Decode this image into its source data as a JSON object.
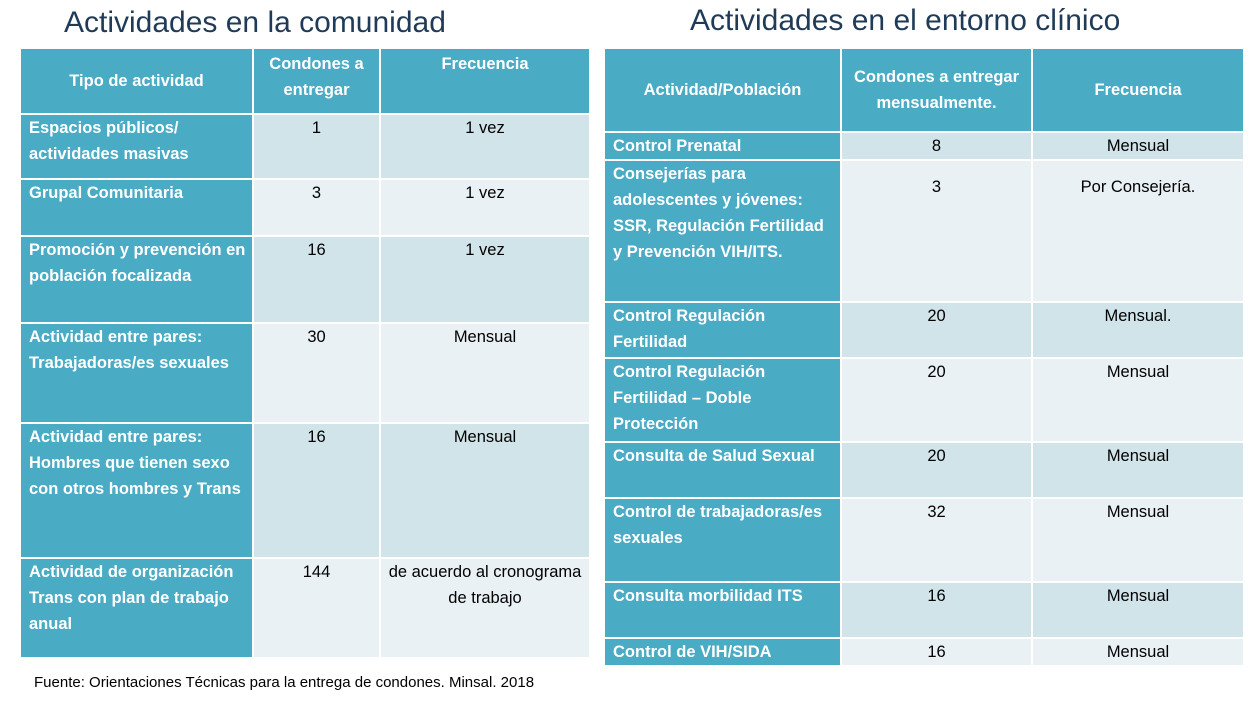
{
  "left": {
    "title": "Actividades en la comunidad",
    "headers": [
      "Tipo de actividad",
      "Condones a entregar",
      "Frecuencia"
    ],
    "rows": [
      {
        "activity": "Espacios públicos/ actividades masivas",
        "condoms": "1",
        "frequency": "1 vez"
      },
      {
        "activity": "Grupal Comunitaria",
        "condoms": "3",
        "frequency": "1 vez"
      },
      {
        "activity": "Promoción y prevención en población focalizada",
        "condoms": "16",
        "frequency": "1 vez"
      },
      {
        "activity": "Actividad entre pares: Trabajadoras/es sexuales",
        "condoms": "30",
        "frequency": "Mensual"
      },
      {
        "activity": "Actividad entre pares: Hombres que tienen sexo con otros hombres y Trans",
        "condoms": "16",
        "frequency": "Mensual"
      },
      {
        "activity": "Actividad de organización Trans con plan de  trabajo anual",
        "condoms": "144",
        "frequency": "de acuerdo al cronograma de trabajo"
      }
    ]
  },
  "right": {
    "title": "Actividades en el entorno clínico",
    "headers": [
      "Actividad/Población",
      "Condones a entregar mensualmente.",
      "Frecuencia"
    ],
    "rows": [
      {
        "activity": "Control Prenatal",
        "condoms": "8",
        "frequency": "Mensual"
      },
      {
        "activity": "Consejerías para adolescentes y jóvenes: SSR, Regulación Fertilidad y Prevención VIH/ITS.",
        "condoms": "3",
        "frequency": "Por Consejería."
      },
      {
        "activity": "Control Regulación Fertilidad",
        "condoms": "20",
        "frequency": "Mensual."
      },
      {
        "activity": "Control Regulación Fertilidad – Doble Protección",
        "condoms": "20",
        "frequency": "Mensual"
      },
      {
        "activity": "Consulta de Salud Sexual",
        "condoms": "20",
        "frequency": "Mensual"
      },
      {
        "activity": "Control de trabajadoras/es sexuales",
        "condoms": "32",
        "frequency": "Mensual"
      },
      {
        "activity": "Consulta morbilidad ITS",
        "condoms": "16",
        "frequency": "Mensual"
      },
      {
        "activity": "Control de VIH/SIDA",
        "condoms": "16",
        "frequency": "Mensual"
      }
    ]
  },
  "source": "Fuente: Orientaciones Técnicas para la entrega de condones. Minsal. 2018"
}
